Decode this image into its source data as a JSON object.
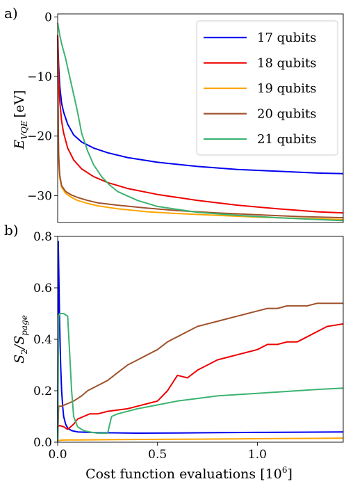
{
  "chart_data": [
    {
      "type": "line",
      "panel_label": "a)",
      "ylabel": "E_{VQE} [eV]",
      "ylabel_main": "E",
      "ylabel_sub": "VQE",
      "ylabel_unit": "[eV]",
      "xlim": [
        0,
        1.43
      ],
      "ylim": [
        -34.5,
        0.5
      ],
      "yticks": [
        0,
        -10,
        -20,
        -30
      ],
      "yticklabels": [
        "0",
        "−10",
        "−20",
        "−30"
      ],
      "grid": false,
      "legend_position": "top-right",
      "series": [
        {
          "name": "17 qubits",
          "color": "#0000ee",
          "x": [
            0,
            0.005,
            0.01,
            0.02,
            0.03,
            0.05,
            0.08,
            0.12,
            0.18,
            0.25,
            0.35,
            0.5,
            0.7,
            0.9,
            1.1,
            1.3,
            1.43
          ],
          "y": [
            -3,
            -8,
            -11.5,
            -14.5,
            -16,
            -18,
            -19.8,
            -21,
            -22,
            -22.8,
            -23.6,
            -24.4,
            -25.1,
            -25.6,
            -25.9,
            -26.2,
            -26.3
          ]
        },
        {
          "name": "18 qubits",
          "color": "#ee0000",
          "x": [
            0,
            0.005,
            0.01,
            0.02,
            0.03,
            0.05,
            0.08,
            0.12,
            0.18,
            0.25,
            0.35,
            0.5,
            0.7,
            0.9,
            1.1,
            1.3,
            1.43
          ],
          "y": [
            -3,
            -10,
            -14,
            -17.5,
            -19.5,
            -22,
            -24,
            -25.5,
            -26.8,
            -27.8,
            -28.8,
            -29.8,
            -30.8,
            -31.6,
            -32.2,
            -32.7,
            -32.9
          ]
        },
        {
          "name": "19 qubits",
          "color": "#ffa500",
          "x": [
            0,
            0.003,
            0.005,
            0.01,
            0.02,
            0.04,
            0.07,
            0.1,
            0.15,
            0.2,
            0.3,
            0.45,
            0.6,
            0.8,
            1.0,
            1.2,
            1.43
          ],
          "y": [
            -5,
            -20,
            -24,
            -27,
            -28.6,
            -29.6,
            -30.3,
            -30.8,
            -31.3,
            -31.7,
            -32.2,
            -32.7,
            -33.0,
            -33.3,
            -33.6,
            -33.8,
            -34.0
          ]
        },
        {
          "name": "20 qubits",
          "color": "#a0522d",
          "x": [
            0,
            0.003,
            0.005,
            0.01,
            0.02,
            0.04,
            0.07,
            0.1,
            0.15,
            0.2,
            0.3,
            0.45,
            0.6,
            0.8,
            1.0,
            1.2,
            1.43
          ],
          "y": [
            -4,
            -18,
            -23,
            -26.5,
            -28.3,
            -29.3,
            -29.9,
            -30.3,
            -30.8,
            -31.2,
            -31.6,
            -32.1,
            -32.5,
            -32.9,
            -33.2,
            -33.5,
            -33.7
          ]
        },
        {
          "name": "21 qubits",
          "color": "#3cb371",
          "x": [
            0,
            0.01,
            0.02,
            0.04,
            0.06,
            0.08,
            0.1,
            0.12,
            0.15,
            0.18,
            0.22,
            0.26,
            0.3,
            0.4,
            0.5,
            0.7,
            0.9,
            1.1,
            1.3,
            1.43
          ],
          "y": [
            -1,
            -3,
            -4.5,
            -7,
            -10,
            -13,
            -16,
            -19.5,
            -22.5,
            -24.8,
            -26.8,
            -28.2,
            -29.3,
            -30.8,
            -31.8,
            -32.8,
            -33.3,
            -33.7,
            -34.0,
            -34.2
          ]
        }
      ]
    },
    {
      "type": "line",
      "panel_label": "b)",
      "ylabel": "S_2/S_{page}",
      "ylabel_main": "S",
      "ylabel_sub1": "2",
      "ylabel_slash": "/S",
      "ylabel_sub2": "page",
      "xlabel": "Cost function evaluations [10^6]",
      "xlabel_main": "Cost function evaluations [10",
      "xlabel_sup": "6",
      "xlabel_end": "]",
      "xlim": [
        0,
        1.43
      ],
      "ylim": [
        0,
        0.8
      ],
      "xticks": [
        0,
        0.5,
        1.0
      ],
      "xticklabels": [
        "0.0",
        "0.5",
        "1.0"
      ],
      "yticks": [
        0,
        0.2,
        0.4,
        0.6,
        0.8
      ],
      "yticklabels": [
        "0.0",
        "0.2",
        "0.4",
        "0.6",
        "0.8"
      ],
      "grid": false,
      "series": [
        {
          "name": "17 qubits",
          "color": "#0000ee",
          "x": [
            0,
            0.003,
            0.006,
            0.01,
            0.015,
            0.02,
            0.025,
            0.03,
            0.04,
            0.05,
            0.07,
            0.1,
            0.2,
            0.4,
            0.6,
            0.8,
            1.0,
            1.2,
            1.43
          ],
          "y": [
            0.0,
            0.78,
            0.65,
            0.45,
            0.3,
            0.2,
            0.14,
            0.1,
            0.07,
            0.055,
            0.045,
            0.04,
            0.037,
            0.035,
            0.036,
            0.037,
            0.038,
            0.039,
            0.04
          ]
        },
        {
          "name": "18 qubits",
          "color": "#ee0000",
          "x": [
            0,
            0.01,
            0.03,
            0.05,
            0.08,
            0.1,
            0.13,
            0.16,
            0.2,
            0.25,
            0.3,
            0.35,
            0.4,
            0.45,
            0.5,
            0.55,
            0.6,
            0.65,
            0.7,
            0.75,
            0.8,
            0.85,
            0.9,
            0.95,
            1.0,
            1.05,
            1.1,
            1.15,
            1.2,
            1.25,
            1.3,
            1.35,
            1.43
          ],
          "y": [
            0.06,
            0.065,
            0.06,
            0.05,
            0.07,
            0.09,
            0.1,
            0.11,
            0.11,
            0.12,
            0.125,
            0.13,
            0.14,
            0.15,
            0.16,
            0.2,
            0.26,
            0.25,
            0.28,
            0.3,
            0.32,
            0.33,
            0.34,
            0.35,
            0.36,
            0.38,
            0.38,
            0.39,
            0.39,
            0.41,
            0.43,
            0.45,
            0.46
          ]
        },
        {
          "name": "19 qubits",
          "color": "#ffa500",
          "x": [
            0,
            0.02,
            0.05,
            0.1,
            0.3,
            0.5,
            0.7,
            0.9,
            1.1,
            1.3,
            1.43
          ],
          "y": [
            0.006,
            0.008,
            0.009,
            0.009,
            0.01,
            0.011,
            0.012,
            0.013,
            0.014,
            0.015,
            0.016
          ]
        },
        {
          "name": "20 qubits",
          "color": "#a0522d",
          "x": [
            0,
            0.005,
            0.02,
            0.05,
            0.08,
            0.12,
            0.15,
            0.2,
            0.25,
            0.3,
            0.35,
            0.4,
            0.45,
            0.5,
            0.55,
            0.6,
            0.65,
            0.7,
            0.75,
            0.8,
            0.85,
            0.9,
            0.95,
            1.0,
            1.05,
            1.1,
            1.15,
            1.2,
            1.25,
            1.3,
            1.35,
            1.43
          ],
          "y": [
            0.0,
            0.14,
            0.14,
            0.15,
            0.16,
            0.18,
            0.2,
            0.22,
            0.24,
            0.27,
            0.3,
            0.32,
            0.34,
            0.36,
            0.39,
            0.41,
            0.43,
            0.45,
            0.46,
            0.47,
            0.48,
            0.49,
            0.5,
            0.51,
            0.52,
            0.52,
            0.53,
            0.53,
            0.53,
            0.54,
            0.54,
            0.54
          ]
        },
        {
          "name": "21 qubits",
          "color": "#3cb371",
          "x": [
            0,
            0.005,
            0.01,
            0.03,
            0.05,
            0.06,
            0.07,
            0.08,
            0.1,
            0.13,
            0.16,
            0.2,
            0.25,
            0.27,
            0.3,
            0.4,
            0.5,
            0.6,
            0.7,
            0.8,
            0.9,
            1.0,
            1.1,
            1.2,
            1.3,
            1.43
          ],
          "y": [
            0.0,
            0.49,
            0.5,
            0.5,
            0.49,
            0.35,
            0.2,
            0.1,
            0.06,
            0.045,
            0.04,
            0.035,
            0.035,
            0.1,
            0.11,
            0.13,
            0.145,
            0.16,
            0.17,
            0.18,
            0.185,
            0.19,
            0.195,
            0.2,
            0.205,
            0.21
          ]
        }
      ]
    }
  ]
}
